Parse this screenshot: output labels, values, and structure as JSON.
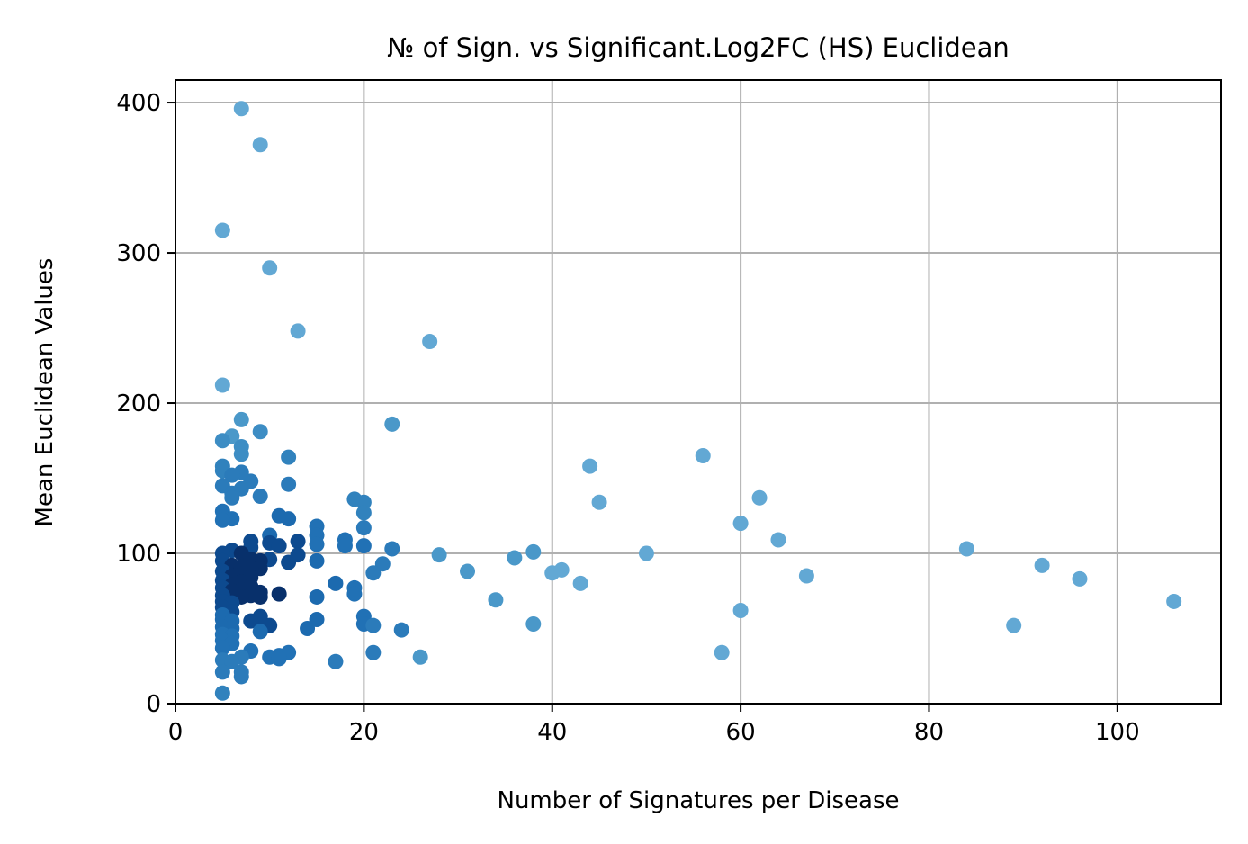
{
  "chart_data": {
    "type": "scatter",
    "title": "№ of Sign. vs Significant.Log2FC (HS) Euclidean",
    "xlabel": "Number of Signatures per Disease",
    "ylabel": "Mean Euclidean Values",
    "xlim": [
      0,
      111
    ],
    "ylim": [
      0,
      415
    ],
    "xticks": [
      0,
      20,
      40,
      60,
      80,
      100
    ],
    "yticks": [
      0,
      100,
      200,
      300,
      400
    ],
    "xtick_labels": [
      "0",
      "20",
      "40",
      "60",
      "80",
      "100"
    ],
    "ytick_labels": [
      "0",
      "100",
      "200",
      "300",
      "400"
    ],
    "grid": true,
    "colors": {
      "light": "#62a8d4",
      "mid": "#2b7bba",
      "dark": "#08306b",
      "grid": "#b0b0b0"
    },
    "points": [
      {
        "x": 7,
        "y": 396,
        "c": "#62a8d4"
      },
      {
        "x": 9,
        "y": 372,
        "c": "#62a8d4"
      },
      {
        "x": 5,
        "y": 315,
        "c": "#62a8d4"
      },
      {
        "x": 10,
        "y": 290,
        "c": "#62a8d4"
      },
      {
        "x": 13,
        "y": 248,
        "c": "#62a8d4"
      },
      {
        "x": 27,
        "y": 241,
        "c": "#62a8d4"
      },
      {
        "x": 5,
        "y": 212,
        "c": "#62a8d4"
      },
      {
        "x": 7,
        "y": 189,
        "c": "#4a98c9"
      },
      {
        "x": 23,
        "y": 186,
        "c": "#4a98c9"
      },
      {
        "x": 9,
        "y": 181,
        "c": "#3d8dc4"
      },
      {
        "x": 6,
        "y": 178,
        "c": "#4a98c9"
      },
      {
        "x": 5,
        "y": 175,
        "c": "#3d8dc4"
      },
      {
        "x": 7,
        "y": 171,
        "c": "#3d8dc4"
      },
      {
        "x": 7,
        "y": 166,
        "c": "#3d8dc4"
      },
      {
        "x": 56,
        "y": 165,
        "c": "#62a8d4"
      },
      {
        "x": 12,
        "y": 164,
        "c": "#3182bd"
      },
      {
        "x": 44,
        "y": 158,
        "c": "#62a8d4"
      },
      {
        "x": 5,
        "y": 158,
        "c": "#3182bd"
      },
      {
        "x": 5,
        "y": 155,
        "c": "#3182bd"
      },
      {
        "x": 7,
        "y": 154,
        "c": "#2b7bba"
      },
      {
        "x": 6,
        "y": 152,
        "c": "#2b7bba"
      },
      {
        "x": 8,
        "y": 148,
        "c": "#2b7bba"
      },
      {
        "x": 12,
        "y": 146,
        "c": "#2b7bba"
      },
      {
        "x": 5,
        "y": 145,
        "c": "#2b7bba"
      },
      {
        "x": 7,
        "y": 143,
        "c": "#2b7bba"
      },
      {
        "x": 6,
        "y": 140,
        "c": "#2b7bba"
      },
      {
        "x": 9,
        "y": 138,
        "c": "#2b7bba"
      },
      {
        "x": 62,
        "y": 137,
        "c": "#62a8d4"
      },
      {
        "x": 6,
        "y": 137,
        "c": "#2b7bba"
      },
      {
        "x": 19,
        "y": 136,
        "c": "#3182bd"
      },
      {
        "x": 20,
        "y": 134,
        "c": "#3182bd"
      },
      {
        "x": 45,
        "y": 134,
        "c": "#62a8d4"
      },
      {
        "x": 5,
        "y": 128,
        "c": "#2171b5"
      },
      {
        "x": 20,
        "y": 127,
        "c": "#3182bd"
      },
      {
        "x": 11,
        "y": 125,
        "c": "#1c6aaf"
      },
      {
        "x": 6,
        "y": 123,
        "c": "#2171b5"
      },
      {
        "x": 12,
        "y": 123,
        "c": "#1c6aaf"
      },
      {
        "x": 5,
        "y": 122,
        "c": "#2171b5"
      },
      {
        "x": 60,
        "y": 120,
        "c": "#62a8d4"
      },
      {
        "x": 15,
        "y": 118,
        "c": "#2171b5"
      },
      {
        "x": 20,
        "y": 117,
        "c": "#2b7bba"
      },
      {
        "x": 15,
        "y": 112,
        "c": "#2171b5"
      },
      {
        "x": 10,
        "y": 112,
        "c": "#1c6aaf"
      },
      {
        "x": 64,
        "y": 109,
        "c": "#62a8d4"
      },
      {
        "x": 18,
        "y": 109,
        "c": "#2171b5"
      },
      {
        "x": 8,
        "y": 108,
        "c": "#0d4a8f"
      },
      {
        "x": 13,
        "y": 108,
        "c": "#0d4a8f"
      },
      {
        "x": 10,
        "y": 107,
        "c": "#0d4a8f"
      },
      {
        "x": 15,
        "y": 106,
        "c": "#2171b5"
      },
      {
        "x": 11,
        "y": 105,
        "c": "#0d4a8f"
      },
      {
        "x": 20,
        "y": 105,
        "c": "#2171b5"
      },
      {
        "x": 18,
        "y": 105,
        "c": "#2171b5"
      },
      {
        "x": 8,
        "y": 104,
        "c": "#0d4a8f"
      },
      {
        "x": 84,
        "y": 103,
        "c": "#62a8d4"
      },
      {
        "x": 23,
        "y": 103,
        "c": "#2b7bba"
      },
      {
        "x": 6,
        "y": 102,
        "c": "#0d4a8f"
      },
      {
        "x": 38,
        "y": 101,
        "c": "#4a98c9"
      },
      {
        "x": 5,
        "y": 100,
        "c": "#0d4a8f"
      },
      {
        "x": 50,
        "y": 100,
        "c": "#62a8d4"
      },
      {
        "x": 7,
        "y": 100,
        "c": "#08306b"
      },
      {
        "x": 13,
        "y": 99,
        "c": "#0d4a8f"
      },
      {
        "x": 28,
        "y": 99,
        "c": "#4a98c9"
      },
      {
        "x": 36,
        "y": 97,
        "c": "#4a98c9"
      },
      {
        "x": 8,
        "y": 96,
        "c": "#08306b"
      },
      {
        "x": 15,
        "y": 95,
        "c": "#1c6aaf"
      },
      {
        "x": 10,
        "y": 96,
        "c": "#0d4a8f"
      },
      {
        "x": 9,
        "y": 95,
        "c": "#08306b"
      },
      {
        "x": 5,
        "y": 95,
        "c": "#0d4a8f"
      },
      {
        "x": 12,
        "y": 94,
        "c": "#0d4a8f"
      },
      {
        "x": 22,
        "y": 93,
        "c": "#2b7bba"
      },
      {
        "x": 92,
        "y": 92,
        "c": "#62a8d4"
      },
      {
        "x": 6,
        "y": 92,
        "c": "#08306b"
      },
      {
        "x": 7,
        "y": 91,
        "c": "#08306b"
      },
      {
        "x": 9,
        "y": 90,
        "c": "#08306b"
      },
      {
        "x": 8,
        "y": 90,
        "c": "#08306b"
      },
      {
        "x": 41,
        "y": 89,
        "c": "#62a8d4"
      },
      {
        "x": 5,
        "y": 88,
        "c": "#0d4a8f"
      },
      {
        "x": 31,
        "y": 88,
        "c": "#4a98c9"
      },
      {
        "x": 40,
        "y": 87,
        "c": "#62a8d4"
      },
      {
        "x": 21,
        "y": 87,
        "c": "#2b7bba"
      },
      {
        "x": 7,
        "y": 86,
        "c": "#08306b"
      },
      {
        "x": 6,
        "y": 85,
        "c": "#08306b"
      },
      {
        "x": 67,
        "y": 85,
        "c": "#62a8d4"
      },
      {
        "x": 8,
        "y": 84,
        "c": "#08306b"
      },
      {
        "x": 96,
        "y": 83,
        "c": "#62a8d4"
      },
      {
        "x": 5,
        "y": 82,
        "c": "#0d4a8f"
      },
      {
        "x": 7,
        "y": 81,
        "c": "#08306b"
      },
      {
        "x": 17,
        "y": 80,
        "c": "#1c6aaf"
      },
      {
        "x": 43,
        "y": 80,
        "c": "#62a8d4"
      },
      {
        "x": 6,
        "y": 79,
        "c": "#08306b"
      },
      {
        "x": 8,
        "y": 78,
        "c": "#08306b"
      },
      {
        "x": 5,
        "y": 77,
        "c": "#0d4a8f"
      },
      {
        "x": 19,
        "y": 77,
        "c": "#2171b5"
      },
      {
        "x": 7,
        "y": 76,
        "c": "#08306b"
      },
      {
        "x": 6,
        "y": 75,
        "c": "#08306b"
      },
      {
        "x": 9,
        "y": 74,
        "c": "#08306b"
      },
      {
        "x": 19,
        "y": 73,
        "c": "#2171b5"
      },
      {
        "x": 11,
        "y": 73,
        "c": "#08306b"
      },
      {
        "x": 5,
        "y": 72,
        "c": "#0d4a8f"
      },
      {
        "x": 8,
        "y": 72,
        "c": "#08306b"
      },
      {
        "x": 7,
        "y": 71,
        "c": "#08306b"
      },
      {
        "x": 15,
        "y": 71,
        "c": "#1c6aaf"
      },
      {
        "x": 9,
        "y": 71,
        "c": "#08306b"
      },
      {
        "x": 34,
        "y": 69,
        "c": "#4a98c9"
      },
      {
        "x": 106,
        "y": 68,
        "c": "#62a8d4"
      },
      {
        "x": 5,
        "y": 68,
        "c": "#0d4a8f"
      },
      {
        "x": 6,
        "y": 67,
        "c": "#0d4a8f"
      },
      {
        "x": 5,
        "y": 64,
        "c": "#0d4a8f"
      },
      {
        "x": 60,
        "y": 62,
        "c": "#62a8d4"
      },
      {
        "x": 6,
        "y": 61,
        "c": "#0d4a8f"
      },
      {
        "x": 5,
        "y": 59,
        "c": "#1c6aaf"
      },
      {
        "x": 9,
        "y": 58,
        "c": "#0d4a8f"
      },
      {
        "x": 20,
        "y": 58,
        "c": "#2171b5"
      },
      {
        "x": 5,
        "y": 56,
        "c": "#1c6aaf"
      },
      {
        "x": 15,
        "y": 56,
        "c": "#1c6aaf"
      },
      {
        "x": 8,
        "y": 55,
        "c": "#0d4a8f"
      },
      {
        "x": 6,
        "y": 55,
        "c": "#1c6aaf"
      },
      {
        "x": 38,
        "y": 53,
        "c": "#4a98c9"
      },
      {
        "x": 20,
        "y": 53,
        "c": "#2171b5"
      },
      {
        "x": 10,
        "y": 52,
        "c": "#0d4a8f"
      },
      {
        "x": 21,
        "y": 52,
        "c": "#2b7bba"
      },
      {
        "x": 89,
        "y": 52,
        "c": "#62a8d4"
      },
      {
        "x": 5,
        "y": 51,
        "c": "#1c6aaf"
      },
      {
        "x": 6,
        "y": 50,
        "c": "#1c6aaf"
      },
      {
        "x": 14,
        "y": 50,
        "c": "#1c6aaf"
      },
      {
        "x": 24,
        "y": 49,
        "c": "#2b7bba"
      },
      {
        "x": 9,
        "y": 48,
        "c": "#1c6aaf"
      },
      {
        "x": 5,
        "y": 46,
        "c": "#2171b5"
      },
      {
        "x": 6,
        "y": 45,
        "c": "#2171b5"
      },
      {
        "x": 5,
        "y": 42,
        "c": "#2171b5"
      },
      {
        "x": 6,
        "y": 40,
        "c": "#2171b5"
      },
      {
        "x": 5,
        "y": 37,
        "c": "#2171b5"
      },
      {
        "x": 8,
        "y": 35,
        "c": "#2171b5"
      },
      {
        "x": 58,
        "y": 34,
        "c": "#62a8d4"
      },
      {
        "x": 21,
        "y": 34,
        "c": "#2b7bba"
      },
      {
        "x": 12,
        "y": 34,
        "c": "#2171b5"
      },
      {
        "x": 11,
        "y": 32,
        "c": "#2171b5"
      },
      {
        "x": 10,
        "y": 31,
        "c": "#2171b5"
      },
      {
        "x": 26,
        "y": 31,
        "c": "#4a98c9"
      },
      {
        "x": 7,
        "y": 31,
        "c": "#2b7bba"
      },
      {
        "x": 11,
        "y": 30,
        "c": "#2171b5"
      },
      {
        "x": 5,
        "y": 29,
        "c": "#2b7bba"
      },
      {
        "x": 6,
        "y": 28,
        "c": "#2b7bba"
      },
      {
        "x": 17,
        "y": 28,
        "c": "#2b7bba"
      },
      {
        "x": 7,
        "y": 21,
        "c": "#2b7bba"
      },
      {
        "x": 5,
        "y": 21,
        "c": "#2b7bba"
      },
      {
        "x": 7,
        "y": 18,
        "c": "#2b7bba"
      },
      {
        "x": 5,
        "y": 7,
        "c": "#3182bd"
      }
    ]
  }
}
